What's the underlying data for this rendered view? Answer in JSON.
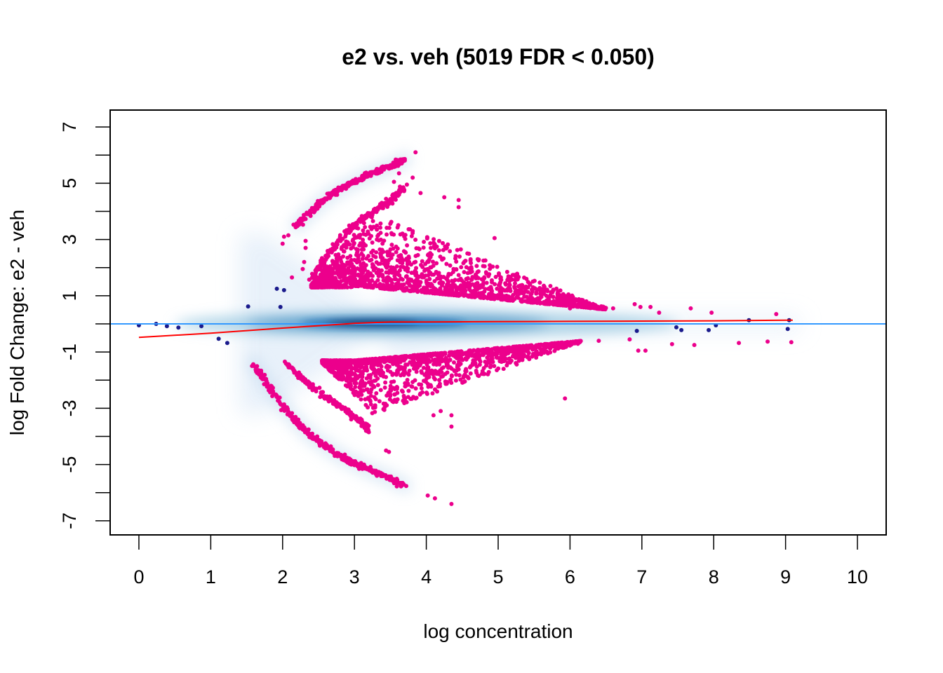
{
  "chart_data": {
    "type": "scatter",
    "title": "e2 vs. veh (5019 FDR < 0.050)",
    "xlabel": "log concentration",
    "ylabel": "log Fold Change: e2 - veh",
    "xlim": [
      -0.4,
      10.4
    ],
    "ylim": [
      -7.5,
      7.6
    ],
    "x_ticks": [
      0,
      1,
      2,
      3,
      4,
      5,
      6,
      7,
      8,
      9,
      10
    ],
    "y_ticks": [
      -7,
      -6,
      -5,
      -4,
      -3,
      -2,
      -1,
      0,
      1,
      2,
      3,
      4,
      5,
      6,
      7
    ],
    "y_tick_labels": [
      "-7",
      "-5",
      "-3",
      "-1",
      "1",
      "3",
      "5",
      "7"
    ],
    "grid": false,
    "legend": "none",
    "colors": {
      "significant": "#EC008C",
      "not_significant": "#1A1A8C",
      "baseline": "#3399FF",
      "trend": "#FF0000",
      "density_dark": "#08306B",
      "density_light": "#DEEBF7"
    },
    "baseline_y": 0,
    "trend_line": {
      "x": [
        0,
        1,
        2,
        3,
        3.5,
        4,
        5,
        6,
        7,
        8,
        9,
        9.1
      ],
      "y": [
        -0.48,
        -0.33,
        -0.15,
        0.02,
        0.07,
        0.07,
        0.08,
        0.09,
        0.1,
        0.11,
        0.13,
        0.13
      ]
    },
    "not_significant_points": [
      [
        0.0,
        -0.05
      ],
      [
        0.24,
        0.0
      ],
      [
        0.39,
        -0.08
      ],
      [
        0.55,
        -0.13
      ],
      [
        0.87,
        -0.08
      ],
      [
        1.11,
        -0.53
      ],
      [
        1.23,
        -0.68
      ],
      [
        1.52,
        0.62
      ],
      [
        1.92,
        1.25
      ],
      [
        1.97,
        0.6
      ],
      [
        2.02,
        1.2
      ],
      [
        6.93,
        -0.25
      ],
      [
        7.48,
        -0.12
      ],
      [
        7.55,
        -0.22
      ],
      [
        7.93,
        -0.22
      ],
      [
        8.03,
        -0.05
      ],
      [
        8.49,
        0.13
      ],
      [
        9.03,
        -0.18
      ],
      [
        9.05,
        0.13
      ]
    ],
    "significant_upper_arc": [
      [
        2.2,
        3.5
      ],
      [
        2.4,
        4.0
      ],
      [
        2.6,
        4.45
      ],
      [
        2.8,
        4.8
      ],
      [
        3.0,
        5.05
      ],
      [
        3.2,
        5.3
      ],
      [
        3.4,
        5.5
      ],
      [
        3.6,
        5.7
      ],
      [
        3.7,
        5.85
      ]
    ],
    "significant_lower_arc": [
      [
        1.6,
        -1.4
      ],
      [
        1.8,
        -2.2
      ],
      [
        2.0,
        -2.9
      ],
      [
        2.2,
        -3.5
      ],
      [
        2.4,
        -4.0
      ],
      [
        2.6,
        -4.35
      ],
      [
        2.8,
        -4.7
      ],
      [
        3.0,
        -4.95
      ],
      [
        3.2,
        -5.2
      ],
      [
        3.5,
        -5.5
      ],
      [
        3.7,
        -5.75
      ]
    ],
    "significant_isolated_points": [
      [
        2.0,
        2.85
      ],
      [
        2.02,
        3.1
      ],
      [
        2.08,
        3.15
      ],
      [
        2.13,
        1.65
      ],
      [
        2.28,
        1.95
      ],
      [
        2.3,
        2.2
      ],
      [
        2.32,
        2.7
      ],
      [
        2.32,
        2.95
      ],
      [
        3.85,
        6.1
      ],
      [
        3.62,
        5.35
      ],
      [
        3.38,
        4.3
      ],
      [
        3.73,
        4.95
      ],
      [
        3.55,
        5.05
      ],
      [
        3.81,
        5.2
      ],
      [
        3.92,
        4.65
      ],
      [
        4.25,
        4.5
      ],
      [
        4.45,
        4.4
      ],
      [
        4.45,
        4.15
      ],
      [
        4.95,
        3.05
      ],
      [
        6.0,
        0.55
      ],
      [
        6.3,
        0.6
      ],
      [
        6.6,
        0.55
      ],
      [
        6.9,
        0.7
      ],
      [
        6.98,
        0.6
      ],
      [
        7.12,
        0.6
      ],
      [
        7.24,
        0.4
      ],
      [
        7.68,
        0.55
      ],
      [
        7.97,
        0.4
      ],
      [
        8.87,
        0.35
      ],
      [
        5.93,
        -2.65
      ],
      [
        4.02,
        -6.1
      ],
      [
        4.12,
        -6.2
      ],
      [
        4.35,
        -6.4
      ],
      [
        3.44,
        -4.5
      ],
      [
        3.48,
        -4.55
      ],
      [
        3.2,
        -3.85
      ],
      [
        4.1,
        -3.25
      ],
      [
        4.2,
        -3.1
      ],
      [
        4.35,
        -3.25
      ],
      [
        4.35,
        -3.65
      ],
      [
        6.83,
        -0.55
      ],
      [
        6.95,
        -0.95
      ],
      [
        7.05,
        -0.95
      ],
      [
        7.42,
        -0.72
      ],
      [
        7.73,
        -0.75
      ],
      [
        8.35,
        -0.68
      ],
      [
        8.75,
        -0.63
      ],
      [
        9.08,
        -0.65
      ],
      [
        5.2,
        -0.9
      ],
      [
        5.7,
        -0.8
      ],
      [
        6.1,
        -0.65
      ],
      [
        6.4,
        -0.6
      ]
    ]
  }
}
